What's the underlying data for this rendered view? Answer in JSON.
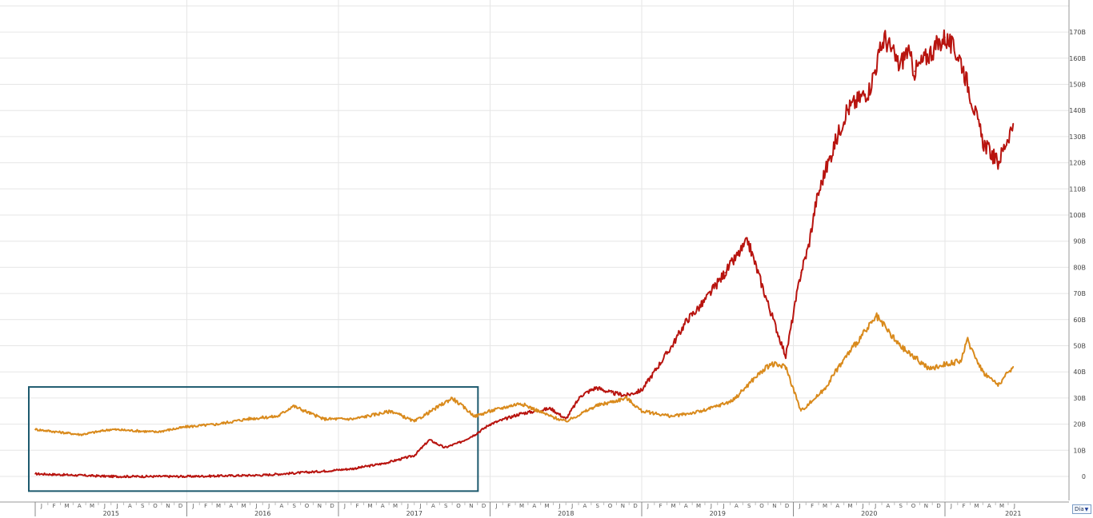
{
  "period_select": {
    "value": "Dia",
    "icon": "caret-down-icon"
  },
  "chart_data": {
    "type": "line",
    "title": "",
    "xlabel": "",
    "ylabel": "",
    "ylim": [
      -5,
      180
    ],
    "xlim": [
      2015.0,
      2021.5
    ],
    "grid": true,
    "legend": "none",
    "y_ticks": [
      0,
      10,
      20,
      30,
      40,
      50,
      60,
      70,
      80,
      90,
      100,
      110,
      120,
      130,
      140,
      150,
      160,
      170
    ],
    "y_tick_labels": [
      "0",
      "10B",
      "20B",
      "30B",
      "40B",
      "50B",
      "60B",
      "70B",
      "80B",
      "90B",
      "100B",
      "110B",
      "120B",
      "130B",
      "140B",
      "150B",
      "160B",
      "170B"
    ],
    "years": [
      "2015",
      "2016",
      "2017",
      "2018",
      "2019",
      "2020",
      "2021"
    ],
    "month_letters": [
      "J",
      "F",
      "M",
      "A",
      "M",
      "J",
      "J",
      "A",
      "S",
      "O",
      "N",
      "D"
    ],
    "highlight_box": {
      "x_start": 2015.0,
      "x_end": 2017.92,
      "y_start": -5,
      "y_end": 33,
      "color": "#1d5a6e"
    },
    "series": [
      {
        "color": "#b8140f",
        "x": [
          2015.0,
          2015.5,
          2016.0,
          2016.5,
          2016.9,
          2017.1,
          2017.3,
          2017.5,
          2017.6,
          2017.7,
          2017.8,
          2017.9,
          2018.0,
          2018.2,
          2018.4,
          2018.5,
          2018.6,
          2018.7,
          2018.8,
          2018.9,
          2019.0,
          2019.2,
          2019.3,
          2019.4,
          2019.55,
          2019.7,
          2019.85,
          2019.95,
          2020.05,
          2020.1,
          2020.15,
          2020.2,
          2020.35,
          2020.5,
          2020.6,
          2020.7,
          2020.75,
          2020.8,
          2020.9,
          2021.0,
          2021.1,
          2021.15,
          2021.25,
          2021.35,
          2021.45
        ],
        "values": [
          1,
          0,
          0,
          0.5,
          2,
          3,
          5,
          8,
          14,
          11,
          13,
          16,
          20,
          24,
          26,
          22,
          31,
          34,
          32,
          31,
          33,
          50,
          60,
          66,
          78,
          90,
          63,
          46,
          78,
          88,
          105,
          115,
          140,
          148,
          168,
          157,
          163,
          155,
          162,
          168,
          160,
          150,
          128,
          120,
          135
        ]
      },
      {
        "color": "#d98a1c",
        "x": [
          2015.0,
          2015.3,
          2015.5,
          2015.8,
          2016.0,
          2016.2,
          2016.4,
          2016.6,
          2016.7,
          2016.9,
          2017.1,
          2017.35,
          2017.5,
          2017.75,
          2017.9,
          2018.0,
          2018.2,
          2018.4,
          2018.5,
          2018.7,
          2018.9,
          2019.0,
          2019.2,
          2019.4,
          2019.6,
          2019.75,
          2019.85,
          2019.95,
          2020.05,
          2020.2,
          2020.3,
          2020.4,
          2020.55,
          2020.7,
          2020.9,
          2021.0,
          2021.1,
          2021.15,
          2021.25,
          2021.35,
          2021.45
        ],
        "values": [
          18,
          16,
          18,
          17,
          19,
          20,
          22,
          23,
          27,
          22,
          22,
          25,
          21,
          30,
          23,
          25,
          28,
          23,
          21,
          27,
          30,
          25,
          23,
          25,
          29,
          38,
          43,
          42,
          25,
          33,
          42,
          50,
          61,
          50,
          41,
          43,
          44,
          52,
          40,
          35,
          42
        ]
      }
    ]
  }
}
